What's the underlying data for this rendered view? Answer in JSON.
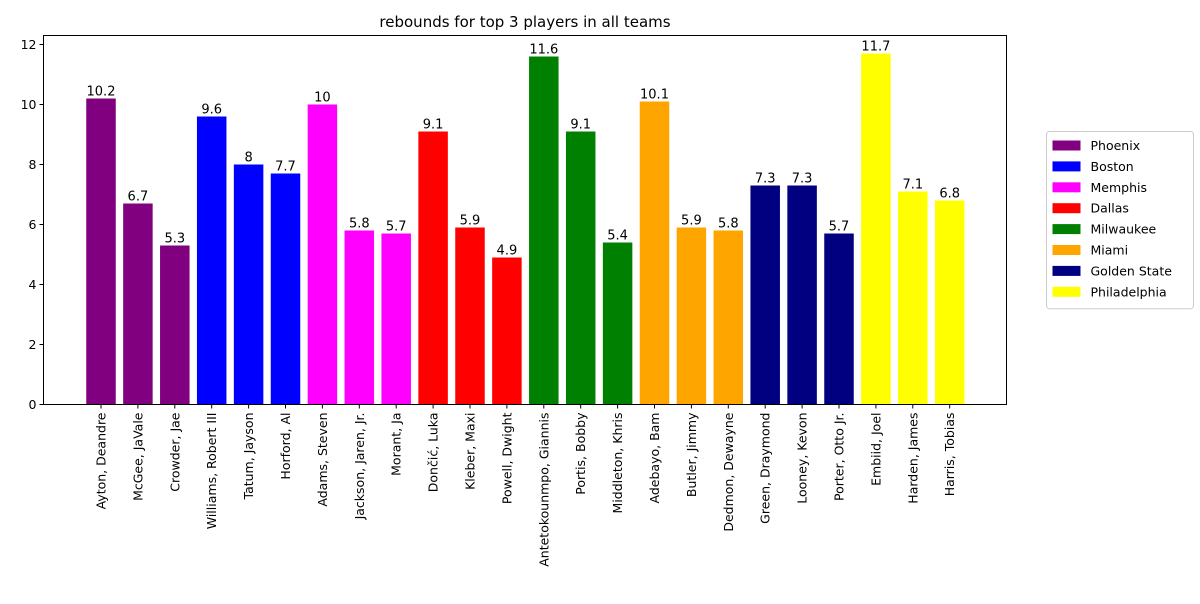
{
  "chart_data": {
    "type": "bar",
    "title": "rebounds for top 3 players in all teams",
    "xlabel": "",
    "ylabel": "",
    "ylim": [
      0,
      12.3
    ],
    "yticks": [
      0,
      2,
      4,
      6,
      8,
      10,
      12
    ],
    "grid": false,
    "legend_position": "right",
    "teams": [
      {
        "name": "Phoenix",
        "color": "#800080"
      },
      {
        "name": "Boston",
        "color": "#0000ff"
      },
      {
        "name": "Memphis",
        "color": "#ff00ff"
      },
      {
        "name": "Dallas",
        "color": "#ff0000"
      },
      {
        "name": "Milwaukee",
        "color": "#008000"
      },
      {
        "name": "Miami",
        "color": "#ffa500"
      },
      {
        "name": "Golden State",
        "color": "#000080"
      },
      {
        "name": "Philadelphia",
        "color": "#ffff00"
      }
    ],
    "bars": [
      {
        "player": "Ayton, Deandre",
        "team": "Phoenix",
        "value": 10.2,
        "label": "10.2"
      },
      {
        "player": "McGee, JaVale",
        "team": "Phoenix",
        "value": 6.7,
        "label": "6.7"
      },
      {
        "player": "Crowder, Jae",
        "team": "Phoenix",
        "value": 5.3,
        "label": "5.3"
      },
      {
        "player": "Williams, Robert III",
        "team": "Boston",
        "value": 9.6,
        "label": "9.6"
      },
      {
        "player": "Tatum, Jayson",
        "team": "Boston",
        "value": 8,
        "label": "8"
      },
      {
        "player": "Horford, Al",
        "team": "Boston",
        "value": 7.7,
        "label": "7.7"
      },
      {
        "player": "Adams, Steven",
        "team": "Memphis",
        "value": 10,
        "label": "10"
      },
      {
        "player": "Jackson, Jaren, Jr.",
        "team": "Memphis",
        "value": 5.8,
        "label": "5.8"
      },
      {
        "player": "Morant, Ja",
        "team": "Memphis",
        "value": 5.7,
        "label": "5.7"
      },
      {
        "player": "Dončić, Luka",
        "team": "Dallas",
        "value": 9.1,
        "label": "9.1"
      },
      {
        "player": "Kleber, Maxi",
        "team": "Dallas",
        "value": 5.9,
        "label": "5.9"
      },
      {
        "player": "Powell, Dwight",
        "team": "Dallas",
        "value": 4.9,
        "label": "4.9"
      },
      {
        "player": "Antetokounmpo, Giannis",
        "team": "Milwaukee",
        "value": 11.6,
        "label": "11.6"
      },
      {
        "player": "Portis, Bobby",
        "team": "Milwaukee",
        "value": 9.1,
        "label": "9.1"
      },
      {
        "player": "Middleton, Khris",
        "team": "Milwaukee",
        "value": 5.4,
        "label": "5.4"
      },
      {
        "player": "Adebayo, Bam",
        "team": "Miami",
        "value": 10.1,
        "label": "10.1"
      },
      {
        "player": "Butler, Jimmy",
        "team": "Miami",
        "value": 5.9,
        "label": "5.9"
      },
      {
        "player": "Dedmon, Dewayne",
        "team": "Miami",
        "value": 5.8,
        "label": "5.8"
      },
      {
        "player": "Green, Draymond",
        "team": "Golden State",
        "value": 7.3,
        "label": "7.3"
      },
      {
        "player": "Looney, Kevon",
        "team": "Golden State",
        "value": 7.3,
        "label": "7.3"
      },
      {
        "player": "Porter, Otto Jr.",
        "team": "Golden State",
        "value": 5.7,
        "label": "5.7"
      },
      {
        "player": "Embiid, Joel",
        "team": "Philadelphia",
        "value": 11.7,
        "label": "11.7"
      },
      {
        "player": "Harden, James",
        "team": "Philadelphia",
        "value": 7.1,
        "label": "7.1"
      },
      {
        "player": "Harris, Tobias",
        "team": "Philadelphia",
        "value": 6.8,
        "label": "6.8"
      }
    ]
  }
}
